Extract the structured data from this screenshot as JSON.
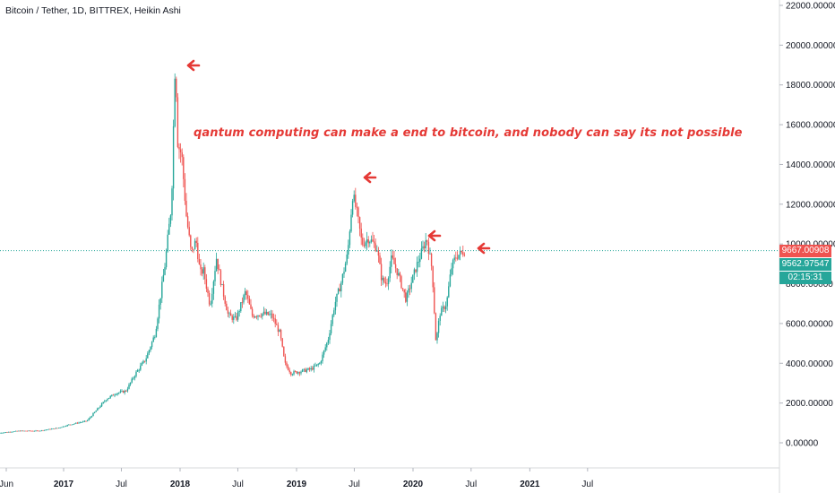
{
  "symbol_label": "Bitcoin / Tether, 1D, BITTREX, Heikin Ashi",
  "annotation": "qantum computing can make a end to bitcoin, and nobody can say its not possible",
  "price_tags": {
    "last_price": "9667.00908",
    "last_price_color": "#ef5350",
    "mark_price": "9562.97547",
    "mark_price_color": "#26a69a",
    "countdown": "02:15:31",
    "countdown_color": "#26a69a"
  },
  "colors": {
    "up": "#26a69a",
    "down": "#ef5350",
    "arrow": "#e53935",
    "price_line": "#26a69a"
  },
  "chart_data": {
    "type": "candlestick",
    "title": "Bitcoin / Tether, 1D, BITTREX, Heikin Ashi",
    "xlabel": "",
    "ylabel": "",
    "ylim": [
      -1000,
      22000
    ],
    "y_ticks": [
      "22000.00000",
      "20000.00000",
      "18000.00000",
      "16000.00000",
      "14000.00000",
      "12000.00000",
      "10000.00000",
      "8000.00000",
      "6000.00000",
      "4000.00000",
      "2000.00000",
      "0.00000"
    ],
    "x_ticks": [
      "Jun",
      "2017",
      "Jul",
      "2018",
      "Jul",
      "2019",
      "Jul",
      "2020",
      "Jul",
      "2021",
      "Jul"
    ],
    "grid": false,
    "current_price": 9667.00908,
    "series": [
      {
        "x": [
          "2016-06",
          "2016-08",
          "2016-10",
          "2016-12",
          "2017-01",
          "2017-03",
          "2017-05",
          "2017-06",
          "2017-07",
          "2017-08",
          "2017-09",
          "2017-10",
          "2017-11",
          "2017-12-05",
          "2017-12-17",
          "2017-12-25",
          "2018-01-06",
          "2018-01-20",
          "2018-02-05",
          "2018-02-20",
          "2018-03-05",
          "2018-03-15",
          "2018-04-05",
          "2018-04-25",
          "2018-05-10",
          "2018-06-01",
          "2018-06-25",
          "2018-07-25",
          "2018-08-15",
          "2018-09-15",
          "2018-10-15",
          "2018-11-10",
          "2018-11-25",
          "2018-12-15",
          "2019-01-15",
          "2019-02-15",
          "2019-03-15",
          "2019-04-10",
          "2019-05-01",
          "2019-05-20",
          "2019-06-10",
          "2019-06-26",
          "2019-07-10",
          "2019-07-25",
          "2019-08-15",
          "2019-09-10",
          "2019-09-25",
          "2019-10-10",
          "2019-10-26",
          "2019-11-15",
          "2019-12-10",
          "2020-01-10",
          "2020-02-13",
          "2020-03-01",
          "2020-03-13",
          "2020-03-25",
          "2020-04-15",
          "2020-04-30",
          "2020-05-15",
          "2020-05-28",
          "2020-06-05",
          "2020-06-12"
        ],
        "values": [
          500,
          600,
          600,
          750,
          900,
          1100,
          2200,
          2500,
          2600,
          3500,
          4200,
          5500,
          9000,
          12000,
          19500,
          15000,
          14500,
          11500,
          9500,
          10200,
          8500,
          8700,
          6900,
          9300,
          8000,
          6400,
          6200,
          7600,
          6400,
          6500,
          6400,
          5500,
          4000,
          3500,
          3600,
          3700,
          4000,
          5200,
          7000,
          8000,
          9500,
          12500,
          11500,
          10000,
          10300,
          9800,
          8200,
          8000,
          9300,
          8500,
          7200,
          8800,
          10300,
          8700,
          5000,
          6500,
          7000,
          8800,
          9400,
          9500,
          9600,
          9667
        ]
      }
    ]
  }
}
